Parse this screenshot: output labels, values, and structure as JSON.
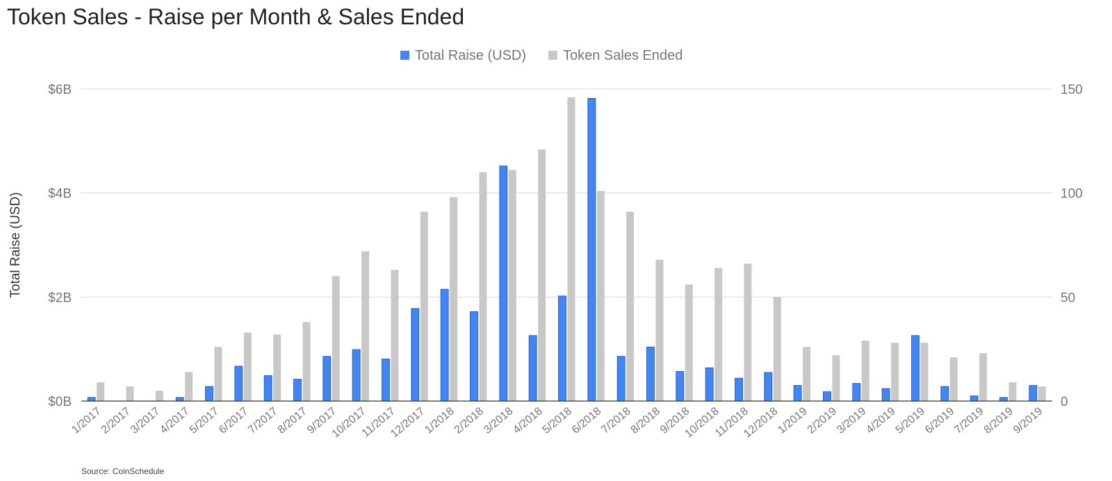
{
  "title": "Token Sales - Raise per Month & Sales Ended",
  "source": "Source: CoinSchedule",
  "colors": {
    "raise": "#4285f4",
    "ended": "#c8c8c8",
    "grid": "#d6d6d6",
    "axis": "#333333",
    "text": "#757575"
  },
  "chart_data": {
    "type": "bar",
    "title": "Token Sales - Raise per Month & Sales Ended",
    "categories": [
      "1/2017",
      "2/2017",
      "3/2017",
      "4/2017",
      "5/2017",
      "6/2017",
      "7/2017",
      "8/2017",
      "9/2017",
      "10/2017",
      "11/2017",
      "12/2017",
      "1/2018",
      "2/2018",
      "3/2018",
      "4/2018",
      "5/2018",
      "6/2018",
      "7/2018",
      "8/2018",
      "9/2018",
      "10/2018",
      "11/2018",
      "12/2018",
      "1/2019",
      "2/2019",
      "3/2019",
      "4/2019",
      "5/2019",
      "6/2019",
      "7/2019",
      "8/2019",
      "9/2019"
    ],
    "series": [
      {
        "name": "Total Raise (USD)",
        "axis": "left",
        "unit": "USD billions",
        "values": [
          0.07,
          0,
          0,
          0.07,
          0.28,
          0.67,
          0.49,
          0.42,
          0.86,
          0.99,
          0.81,
          1.78,
          2.15,
          1.72,
          4.52,
          1.26,
          2.02,
          5.82,
          0.86,
          1.04,
          0.57,
          0.64,
          0.44,
          0.55,
          0.3,
          0.18,
          0.34,
          0.24,
          1.26,
          0.28,
          0.1,
          0.07,
          0.3
        ]
      },
      {
        "name": "Token Sales Ended",
        "axis": "right",
        "values": [
          9,
          7,
          5,
          14,
          26,
          33,
          32,
          38,
          60,
          72,
          63,
          91,
          98,
          110,
          111,
          121,
          146,
          101,
          91,
          68,
          56,
          64,
          66,
          50,
          26,
          22,
          29,
          28,
          28,
          21,
          23,
          9,
          7
        ]
      }
    ],
    "ylabel": "Total Raise (USD)",
    "xlabel": "",
    "ylim": [
      0,
      6
    ],
    "y_ticks": [
      "$0B",
      "$2B",
      "$4B",
      "$6B"
    ],
    "y2lim": [
      0,
      150
    ],
    "y2_ticks": [
      "0",
      "50",
      "100",
      "150"
    ],
    "legend": "top-center",
    "grid": true
  }
}
